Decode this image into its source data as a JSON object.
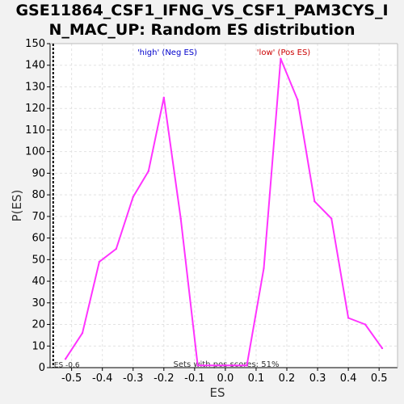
{
  "chart_data": {
    "type": "line",
    "title_lines": [
      "GSE11864_CSF1_IFNG_VS_CSF1_PAM3CYS_I",
      "N_MAC_UP: Random ES distribution"
    ],
    "xlabel": "ES",
    "ylabel": "P(ES)",
    "xlim": [
      -0.57,
      0.56
    ],
    "ylim": [
      0,
      150
    ],
    "xticks": [
      "-0.5",
      "-0.4",
      "-0.3",
      "-0.2",
      "-0.1",
      "0.0",
      "0.1",
      "0.2",
      "0.3",
      "0.4",
      "0.5"
    ],
    "yticks": [
      "0",
      "10",
      "20",
      "30",
      "40",
      "50",
      "60",
      "70",
      "80",
      "90",
      "100",
      "110",
      "120",
      "130",
      "140",
      "150"
    ],
    "grid": true,
    "series": [
      {
        "color": "#ff33ff",
        "x": [
          -0.52,
          -0.465,
          -0.41,
          -0.355,
          -0.3,
          -0.25,
          -0.2,
          -0.145,
          -0.09,
          0.07,
          0.125,
          0.18,
          0.235,
          0.29,
          0.345,
          0.4,
          0.455,
          0.51
        ],
        "y": [
          4,
          16,
          49,
          55,
          79,
          91,
          125,
          69,
          1,
          1,
          46,
          143,
          124,
          77,
          69,
          23,
          20,
          9
        ]
      }
    ],
    "annotations": {
      "high_label": "'high' (Neg ES)",
      "low_label": "'low' (Pos ES)",
      "high_color": "#0000cc",
      "low_color": "#cc0000",
      "es_marker_label": "ES -0.6",
      "es_marker_x": -0.56,
      "pos_scores_label": "Sets with pos scores: 51%"
    }
  }
}
